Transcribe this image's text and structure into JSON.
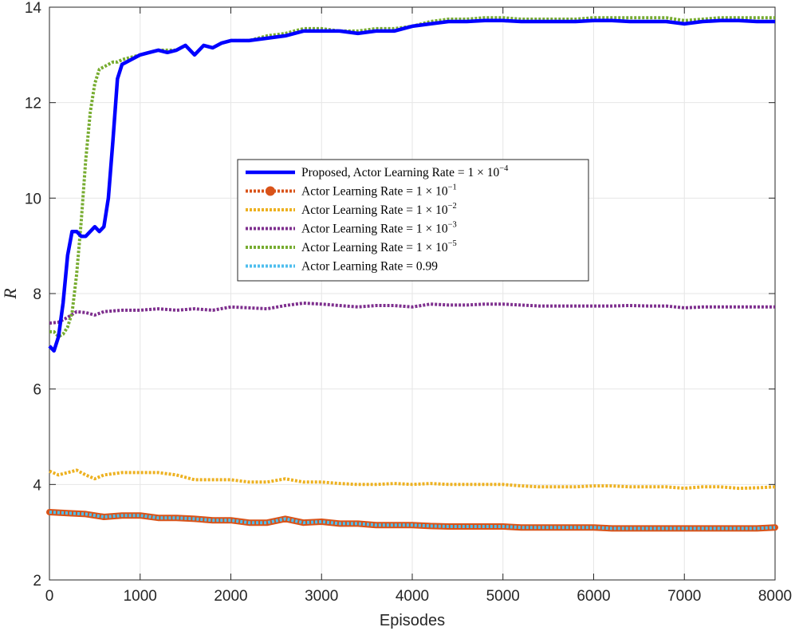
{
  "chart_data": {
    "type": "line",
    "title": "",
    "xlabel": "Episodes",
    "ylabel": "R",
    "xlim": [
      0,
      8000
    ],
    "ylim": [
      2,
      14
    ],
    "xticks": [
      "0",
      "1000",
      "2000",
      "3000",
      "4000",
      "5000",
      "6000",
      "7000",
      "8000"
    ],
    "yticks": [
      "2",
      "4",
      "6",
      "8",
      "10",
      "12",
      "14"
    ],
    "grid": true,
    "legend_position": "center",
    "series": [
      {
        "name": "Proposed, Actor Learning Rate = 1 × 10^-4",
        "label_main": "Proposed, Actor Learning Rate = 1 × 10",
        "label_sup": "−4",
        "color": "#0000ff",
        "style": "solid",
        "x": [
          0,
          50,
          100,
          150,
          200,
          250,
          300,
          350,
          400,
          450,
          500,
          550,
          600,
          650,
          700,
          750,
          800,
          850,
          900,
          1000,
          1100,
          1200,
          1300,
          1400,
          1500,
          1600,
          1700,
          1800,
          1900,
          2000,
          2200,
          2400,
          2600,
          2800,
          3000,
          3200,
          3400,
          3600,
          3800,
          4000,
          4200,
          4400,
          4600,
          4800,
          5000,
          5200,
          5400,
          5600,
          5800,
          6000,
          6200,
          6400,
          6600,
          6800,
          7000,
          7200,
          7400,
          7600,
          7800,
          8000
        ],
        "y": [
          6.9,
          6.8,
          7.1,
          7.8,
          8.8,
          9.3,
          9.3,
          9.2,
          9.2,
          9.3,
          9.4,
          9.3,
          9.4,
          10.0,
          11.2,
          12.5,
          12.8,
          12.85,
          12.9,
          13.0,
          13.05,
          13.1,
          13.05,
          13.1,
          13.2,
          13.0,
          13.2,
          13.15,
          13.25,
          13.3,
          13.3,
          13.35,
          13.4,
          13.5,
          13.5,
          13.5,
          13.45,
          13.5,
          13.5,
          13.6,
          13.65,
          13.7,
          13.7,
          13.72,
          13.72,
          13.7,
          13.7,
          13.7,
          13.7,
          13.72,
          13.72,
          13.7,
          13.7,
          13.7,
          13.65,
          13.7,
          13.72,
          13.72,
          13.7,
          13.7
        ]
      },
      {
        "name": "Actor Learning Rate = 1 × 10^-1",
        "label_main": "Actor Learning Rate = 1 × 10",
        "label_sup": "−1",
        "color": "#d95319",
        "style": "dotted-marker",
        "x": [
          0,
          200,
          400,
          600,
          800,
          1000,
          1200,
          1400,
          1600,
          1800,
          2000,
          2200,
          2400,
          2600,
          2800,
          3000,
          3200,
          3400,
          3600,
          3800,
          4000,
          4200,
          4400,
          4600,
          4800,
          5000,
          5200,
          5400,
          5600,
          5800,
          6000,
          6200,
          6400,
          6600,
          6800,
          7000,
          7200,
          7400,
          7600,
          7800,
          8000
        ],
        "y": [
          3.42,
          3.4,
          3.38,
          3.32,
          3.35,
          3.35,
          3.3,
          3.3,
          3.28,
          3.25,
          3.25,
          3.2,
          3.2,
          3.28,
          3.2,
          3.22,
          3.18,
          3.18,
          3.15,
          3.15,
          3.15,
          3.13,
          3.12,
          3.12,
          3.12,
          3.12,
          3.1,
          3.1,
          3.1,
          3.1,
          3.1,
          3.08,
          3.08,
          3.08,
          3.08,
          3.08,
          3.08,
          3.08,
          3.08,
          3.08,
          3.1
        ]
      },
      {
        "name": "Actor Learning Rate = 1 × 10^-2",
        "label_main": "Actor Learning Rate = 1 × 10",
        "label_sup": "−2",
        "color": "#edb120",
        "style": "dotted",
        "x": [
          0,
          100,
          200,
          300,
          400,
          500,
          600,
          800,
          1000,
          1200,
          1400,
          1600,
          1800,
          2000,
          2200,
          2400,
          2600,
          2800,
          3000,
          3200,
          3400,
          3600,
          3800,
          4000,
          4200,
          4400,
          4600,
          4800,
          5000,
          5200,
          5400,
          5600,
          5800,
          6000,
          6200,
          6400,
          6600,
          6800,
          7000,
          7200,
          7400,
          7600,
          7800,
          8000
        ],
        "y": [
          4.28,
          4.2,
          4.25,
          4.3,
          4.2,
          4.12,
          4.2,
          4.25,
          4.25,
          4.25,
          4.2,
          4.1,
          4.1,
          4.1,
          4.05,
          4.05,
          4.12,
          4.05,
          4.05,
          4.02,
          4.0,
          4.0,
          4.02,
          4.0,
          4.02,
          4.0,
          4.0,
          4.0,
          4.0,
          3.97,
          3.95,
          3.95,
          3.95,
          3.97,
          3.97,
          3.95,
          3.95,
          3.95,
          3.92,
          3.95,
          3.95,
          3.92,
          3.93,
          3.95
        ]
      },
      {
        "name": "Actor Learning Rate = 1 × 10^-3",
        "label_main": "Actor Learning Rate = 1 × 10",
        "label_sup": "−3",
        "color": "#7e2f8e",
        "style": "dotted",
        "x": [
          0,
          100,
          200,
          300,
          400,
          500,
          600,
          800,
          1000,
          1200,
          1400,
          1600,
          1800,
          2000,
          2200,
          2400,
          2600,
          2800,
          3000,
          3200,
          3400,
          3600,
          3800,
          4000,
          4200,
          4400,
          4600,
          4800,
          5000,
          5200,
          5400,
          5600,
          5800,
          6000,
          6200,
          6400,
          6600,
          6800,
          7000,
          7200,
          7400,
          7600,
          7800,
          8000
        ],
        "y": [
          7.38,
          7.4,
          7.5,
          7.62,
          7.6,
          7.55,
          7.62,
          7.65,
          7.65,
          7.68,
          7.65,
          7.68,
          7.65,
          7.72,
          7.7,
          7.68,
          7.75,
          7.8,
          7.78,
          7.75,
          7.72,
          7.75,
          7.75,
          7.72,
          7.78,
          7.76,
          7.76,
          7.78,
          7.78,
          7.76,
          7.74,
          7.74,
          7.74,
          7.74,
          7.74,
          7.75,
          7.74,
          7.74,
          7.7,
          7.72,
          7.72,
          7.72,
          7.72,
          7.72
        ]
      },
      {
        "name": "Actor Learning Rate = 1 × 10^-5",
        "label_main": "Actor Learning Rate = 1 × 10",
        "label_sup": "−5",
        "color": "#77ac30",
        "style": "dotted",
        "x": [
          0,
          50,
          100,
          150,
          200,
          250,
          300,
          350,
          400,
          450,
          500,
          550,
          600,
          650,
          700,
          750,
          800,
          900,
          1000,
          1100,
          1200,
          1300,
          1400,
          1500,
          1600,
          1700,
          1800,
          1900,
          2000,
          2200,
          2400,
          2600,
          2800,
          3000,
          3200,
          3400,
          3600,
          3800,
          4000,
          4200,
          4400,
          4600,
          4800,
          5000,
          5200,
          5400,
          5600,
          5800,
          6000,
          6200,
          6400,
          6600,
          6800,
          7000,
          7200,
          7400,
          7600,
          7800,
          8000
        ],
        "y": [
          7.2,
          7.2,
          7.1,
          7.15,
          7.3,
          7.6,
          8.4,
          9.5,
          10.8,
          11.8,
          12.4,
          12.7,
          12.75,
          12.8,
          12.85,
          12.85,
          12.9,
          12.95,
          13.0,
          13.05,
          13.1,
          13.1,
          13.1,
          13.2,
          13.0,
          13.2,
          13.15,
          13.25,
          13.3,
          13.3,
          13.4,
          13.45,
          13.55,
          13.55,
          13.5,
          13.5,
          13.55,
          13.55,
          13.6,
          13.7,
          13.75,
          13.75,
          13.78,
          13.78,
          13.75,
          13.75,
          13.75,
          13.75,
          13.78,
          13.78,
          13.78,
          13.78,
          13.78,
          13.72,
          13.75,
          13.78,
          13.78,
          13.78,
          13.78
        ]
      },
      {
        "name": "Actor Learning Rate = 0.99",
        "label_main": "Actor Learning Rate = 0.99",
        "label_sup": "",
        "color": "#4dbeee",
        "style": "dotted",
        "x": [
          0,
          200,
          400,
          600,
          800,
          1000,
          1200,
          1400,
          1600,
          1800,
          2000,
          2200,
          2400,
          2600,
          2800,
          3000,
          3200,
          3400,
          3600,
          3800,
          4000,
          4200,
          4400,
          4600,
          4800,
          5000,
          5200,
          5400,
          5600,
          5800,
          6000,
          6200,
          6400,
          6600,
          6800,
          7000,
          7200,
          7400,
          7600,
          7800,
          8000
        ],
        "y": [
          3.42,
          3.4,
          3.38,
          3.32,
          3.35,
          3.35,
          3.3,
          3.3,
          3.28,
          3.25,
          3.25,
          3.2,
          3.2,
          3.28,
          3.2,
          3.22,
          3.18,
          3.18,
          3.15,
          3.15,
          3.15,
          3.13,
          3.12,
          3.12,
          3.12,
          3.12,
          3.1,
          3.1,
          3.1,
          3.1,
          3.1,
          3.08,
          3.08,
          3.08,
          3.08,
          3.08,
          3.08,
          3.08,
          3.08,
          3.08,
          3.1
        ]
      }
    ]
  }
}
